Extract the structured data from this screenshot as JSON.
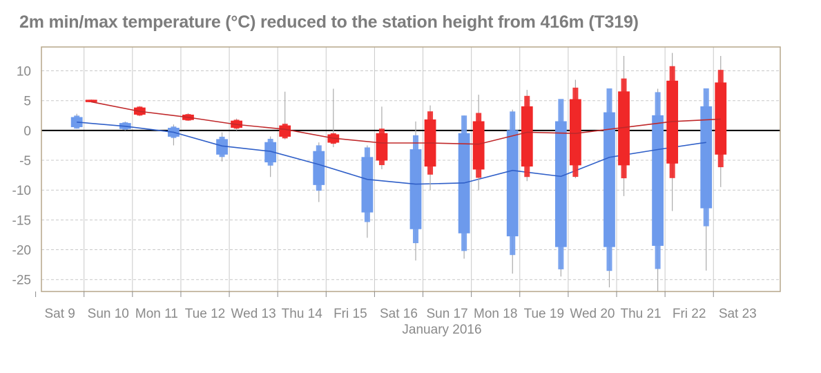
{
  "chart_data": {
    "type": "boxplot-line",
    "title": "2m min/max temperature (°C) reduced to the station height from 416m (T319)",
    "xlabel": "January 2016",
    "ylim": [
      -27,
      14
    ],
    "y_ticks": [
      10,
      5,
      0,
      -5,
      -10,
      -15,
      -20,
      -25
    ],
    "x_ticks": [
      {
        "label": "Sat  9",
        "day": 9,
        "sunday": false
      },
      {
        "label": "Sun 10",
        "day": 10,
        "sunday": true
      },
      {
        "label": "Mon 11",
        "day": 11,
        "sunday": false
      },
      {
        "label": "Tue 12",
        "day": 12,
        "sunday": false
      },
      {
        "label": "Wed 13",
        "day": 13,
        "sunday": false
      },
      {
        "label": "Thu 14",
        "day": 14,
        "sunday": false
      },
      {
        "label": "Fri 15",
        "day": 15,
        "sunday": false
      },
      {
        "label": "Sat 16",
        "day": 16,
        "sunday": false
      },
      {
        "label": "Sun 17",
        "day": 17,
        "sunday": true
      },
      {
        "label": "Mon 18",
        "day": 18,
        "sunday": false
      },
      {
        "label": "Tue 19",
        "day": 19,
        "sunday": false
      },
      {
        "label": "Wed 20",
        "day": 20,
        "sunday": false
      },
      {
        "label": "Thu 21",
        "day": 21,
        "sunday": false
      },
      {
        "label": "Fri 22",
        "day": 22,
        "sunday": false
      },
      {
        "label": "Sat 23",
        "day": 23,
        "sunday": false
      }
    ],
    "zero_line": 0,
    "grid": true,
    "series": [
      {
        "color": "#2f5fc8",
        "box_color": "#6d9aec",
        "points": [
          {
            "day": 9.35,
            "min": 0.3,
            "p25": 0.6,
            "p75": 2.2,
            "max": 2.8,
            "median": 1.4
          },
          {
            "day": 10.35,
            "min": 0.0,
            "p25": 0.3,
            "p75": 1.2,
            "max": 1.5,
            "median": 0.7
          },
          {
            "day": 11.35,
            "min": -2.5,
            "p25": -1.0,
            "p75": 0.4,
            "max": 1.0,
            "median": -0.3
          },
          {
            "day": 12.35,
            "min": -5.2,
            "p25": -4.0,
            "p75": -1.5,
            "max": -0.3,
            "median": -2.6
          },
          {
            "day": 13.35,
            "min": -7.8,
            "p25": -5.3,
            "p75": -2.0,
            "max": -1.0,
            "median": -3.5
          },
          {
            "day": 14.35,
            "min": -12.0,
            "p25": -9.1,
            "p75": -3.5,
            "max": -2.0,
            "median": -5.7
          },
          {
            "day": 15.35,
            "min": -18.0,
            "p25": -13.7,
            "p75": -4.5,
            "max": -2.5,
            "median": -8.2
          },
          {
            "day": 16.35,
            "min": -21.8,
            "p25": -16.5,
            "p75": -3.2,
            "max": 1.5,
            "median": -9.0
          },
          {
            "day": 17.35,
            "min": -21.5,
            "p25": -17.2,
            "p75": -0.5,
            "max": 2.5,
            "median": -8.8
          },
          {
            "day": 18.35,
            "min": -24.0,
            "p25": -17.7,
            "p75": 0.0,
            "max": 3.5,
            "median": -6.7
          },
          {
            "day": 19.35,
            "min": -24.5,
            "p25": -19.5,
            "p75": 1.5,
            "max": 4.5,
            "median": -7.7
          },
          {
            "day": 20.35,
            "min": -26.3,
            "p25": -19.5,
            "p75": 3.0,
            "max": 5.0,
            "median": -4.5
          },
          {
            "day": 21.35,
            "min": -27.0,
            "p25": -19.3,
            "p75": 2.5,
            "max": 7.0,
            "median": -3.2
          },
          {
            "day": 22.35,
            "min": -23.5,
            "p25": -13.0,
            "p75": 4.0,
            "max": 6.5,
            "median": -2.0
          }
        ]
      },
      {
        "color": "#c0282a",
        "box_color": "#f02828",
        "points": [
          {
            "day": 9.65,
            "min": 4.7,
            "p25": 4.8,
            "p75": 5.1,
            "max": 5.2,
            "median": 4.8
          },
          {
            "day": 10.65,
            "min": 2.4,
            "p25": 2.7,
            "p75": 3.8,
            "max": 4.1,
            "median": 3.2
          },
          {
            "day": 11.65,
            "min": 1.6,
            "p25": 1.8,
            "p75": 2.6,
            "max": 2.9,
            "median": 2.2
          },
          {
            "day": 12.65,
            "min": 0.0,
            "p25": 0.5,
            "p75": 1.6,
            "max": 2.0,
            "median": 1.0
          },
          {
            "day": 13.65,
            "min": -1.5,
            "p25": -1.0,
            "p75": 0.8,
            "max": 6.5,
            "median": 0.2
          },
          {
            "day": 14.65,
            "min": -2.8,
            "p25": -2.0,
            "p75": -0.7,
            "max": 7.0,
            "median": -1.3
          },
          {
            "day": 15.65,
            "min": -6.5,
            "p25": -5.0,
            "p75": -0.5,
            "max": 4.0,
            "median": -2.1
          },
          {
            "day": 16.65,
            "min": -10.0,
            "p25": -6.0,
            "p75": 1.8,
            "max": 4.2,
            "median": -2.1
          },
          {
            "day": 17.65,
            "min": -10.0,
            "p25": -6.5,
            "p75": 1.5,
            "max": 6.0,
            "median": -2.3
          },
          {
            "day": 18.65,
            "min": -8.5,
            "p25": -6.0,
            "p75": 4.0,
            "max": 6.8,
            "median": -0.3
          },
          {
            "day": 19.65,
            "min": -8.0,
            "p25": -5.8,
            "p75": 5.2,
            "max": 8.5,
            "median": -0.5
          },
          {
            "day": 20.65,
            "min": -11.0,
            "p25": -5.8,
            "p75": 6.5,
            "max": 12.5,
            "median": 0.5
          },
          {
            "day": 21.65,
            "min": -13.5,
            "p25": -5.5,
            "p75": 8.3,
            "max": 13.0,
            "median": 1.5
          },
          {
            "day": 22.65,
            "min": -9.5,
            "p25": -4.0,
            "p75": 8.0,
            "max": 12.5,
            "median": 1.9
          }
        ]
      }
    ]
  },
  "style": {
    "frame_color": "#b5a58a",
    "grid_color": "#c8c8c8",
    "zero_color": "#000000",
    "tick_color": "#8a8a8a",
    "sunday_color": "#e01010"
  }
}
